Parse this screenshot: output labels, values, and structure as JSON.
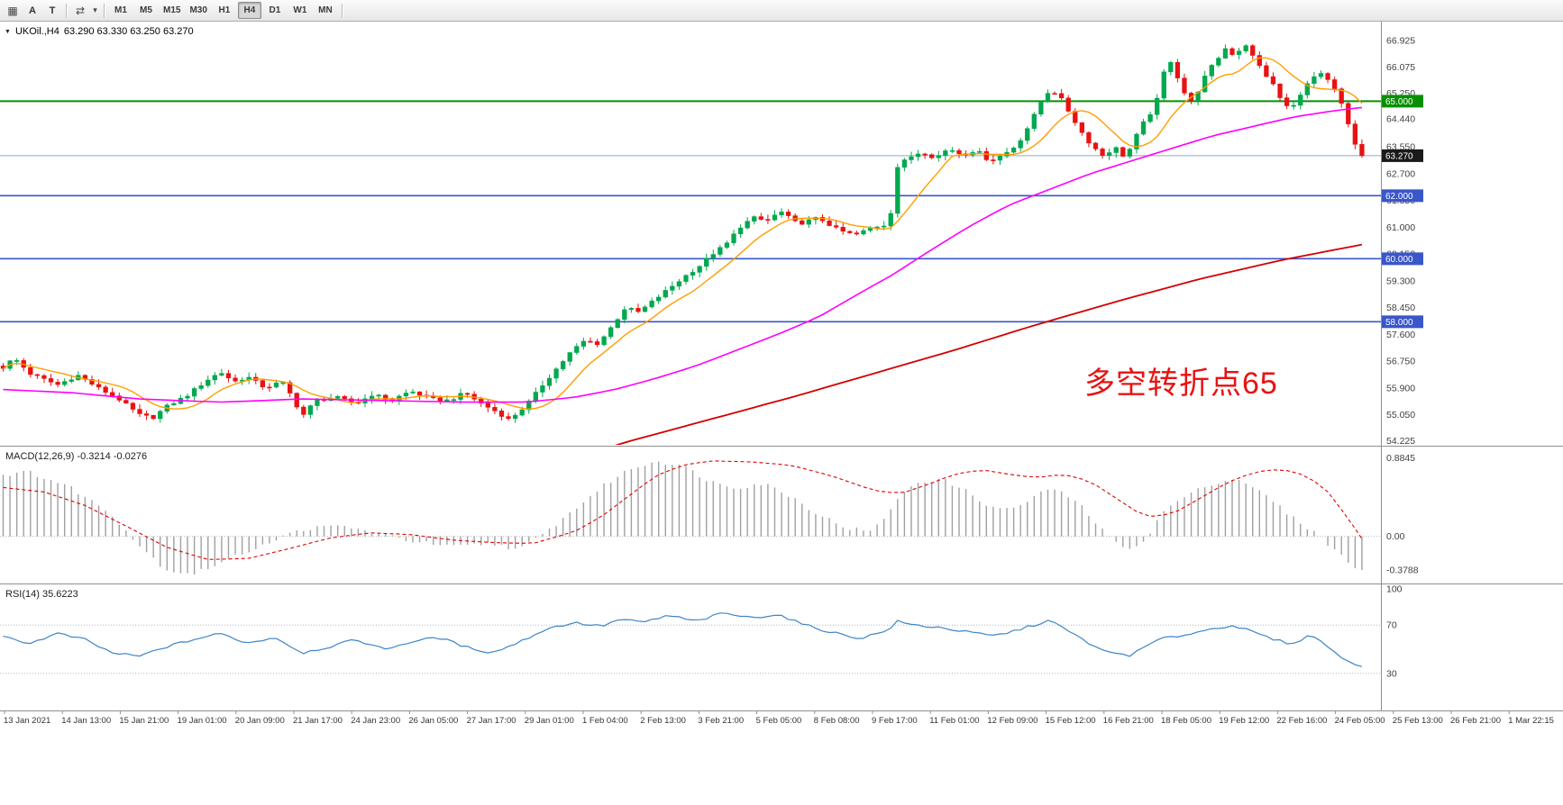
{
  "toolbar": {
    "left_icons": [
      {
        "name": "grid-icon",
        "glyph": "▦"
      },
      {
        "name": "label-a-icon",
        "glyph": "A"
      },
      {
        "name": "text-tool-icon",
        "glyph": "T"
      },
      {
        "name": "cycle-symbols-icon",
        "glyph": "⇄"
      },
      {
        "name": "dropdown-caret-icon",
        "glyph": "▾"
      }
    ],
    "timeframes": [
      "M1",
      "M5",
      "M15",
      "M30",
      "H1",
      "H4",
      "D1",
      "W1",
      "MN"
    ],
    "active_timeframe": "H4"
  },
  "chart": {
    "collapse_glyph": "▼",
    "symbol_period": "UKOil.,H4",
    "ohlc_text": "63.290 63.330 63.250 63.270",
    "annotation": "多空转折点65",
    "annotation_color": "#e81212"
  },
  "macd": {
    "label": "MACD(12,26,9) -0.3214 -0.0276"
  },
  "rsi": {
    "label": "RSI(14) 35.6223"
  },
  "chart_data": {
    "type": "candlestick",
    "symbol": "UKOil.",
    "period": "H4",
    "last_ohlc": {
      "open": 63.29,
      "high": 63.33,
      "low": 63.25,
      "close": 63.27
    },
    "price_range": {
      "max": 67.525,
      "min": 54.095
    },
    "price_axis_labels": [
      "66.925",
      "66.075",
      "65.250",
      "64.440",
      "63.550",
      "62.700",
      "61.850",
      "61.000",
      "60.150",
      "59.300",
      "58.450",
      "57.600",
      "56.750",
      "55.900",
      "55.050",
      "54.225"
    ],
    "hlines": [
      {
        "price": 65.0,
        "color": "#089000",
        "width": 2,
        "tag": {
          "text": "65.000",
          "bg": "#089000"
        }
      },
      {
        "price": 63.27,
        "color": "#8fa8c8",
        "width": 1,
        "tag": {
          "text": "63.270",
          "bg": "#1a1a1a"
        }
      },
      {
        "price": 62.0,
        "color": "#3a56c8",
        "width": 1.6,
        "tag": {
          "text": "62.000",
          "bg": "#3a56c8"
        }
      },
      {
        "price": 60.0,
        "color": "#3a56c8",
        "width": 1.6,
        "tag": {
          "text": "60.000",
          "bg": "#3a56c8"
        }
      },
      {
        "price": 58.0,
        "color": "#3a56c8",
        "width": 1.6,
        "tag": {
          "text": "58.000",
          "bg": "#3a56c8"
        }
      }
    ],
    "candles": {
      "count": 200,
      "up_color": "#00a84f",
      "down_color": "#e81212",
      "noise": 0.1,
      "wick_noise": 0.14,
      "close_anchors": [
        [
          0.0,
          56.55
        ],
        [
          0.008,
          56.85
        ],
        [
          0.02,
          56.35
        ],
        [
          0.04,
          56.0
        ],
        [
          0.055,
          56.3
        ],
        [
          0.07,
          55.9
        ],
        [
          0.085,
          55.55
        ],
        [
          0.1,
          55.05
        ],
        [
          0.11,
          54.95
        ],
        [
          0.12,
          55.3
        ],
        [
          0.135,
          55.65
        ],
        [
          0.15,
          56.15
        ],
        [
          0.16,
          56.4
        ],
        [
          0.17,
          56.1
        ],
        [
          0.18,
          56.25
        ],
        [
          0.193,
          55.9
        ],
        [
          0.205,
          56.1
        ],
        [
          0.213,
          55.6
        ],
        [
          0.22,
          55.0
        ],
        [
          0.23,
          55.5
        ],
        [
          0.245,
          55.6
        ],
        [
          0.26,
          55.4
        ],
        [
          0.272,
          55.7
        ],
        [
          0.285,
          55.5
        ],
        [
          0.3,
          55.8
        ],
        [
          0.315,
          55.55
        ],
        [
          0.328,
          55.5
        ],
        [
          0.34,
          55.75
        ],
        [
          0.352,
          55.4
        ],
        [
          0.363,
          55.15
        ],
        [
          0.372,
          54.9
        ],
        [
          0.38,
          55.15
        ],
        [
          0.388,
          55.5
        ],
        [
          0.398,
          56.05
        ],
        [
          0.408,
          56.55
        ],
        [
          0.418,
          57.05
        ],
        [
          0.428,
          57.4
        ],
        [
          0.438,
          57.3
        ],
        [
          0.448,
          57.85
        ],
        [
          0.458,
          58.45
        ],
        [
          0.468,
          58.3
        ],
        [
          0.478,
          58.65
        ],
        [
          0.49,
          59.05
        ],
        [
          0.502,
          59.45
        ],
        [
          0.512,
          59.75
        ],
        [
          0.522,
          60.15
        ],
        [
          0.532,
          60.45
        ],
        [
          0.542,
          61.0
        ],
        [
          0.552,
          61.3
        ],
        [
          0.562,
          61.2
        ],
        [
          0.572,
          61.5
        ],
        [
          0.585,
          61.1
        ],
        [
          0.6,
          61.3
        ],
        [
          0.615,
          60.9
        ],
        [
          0.627,
          60.75
        ],
        [
          0.64,
          61.0
        ],
        [
          0.652,
          61.1
        ],
        [
          0.658,
          62.9
        ],
        [
          0.666,
          63.2
        ],
        [
          0.676,
          63.4
        ],
        [
          0.686,
          63.2
        ],
        [
          0.696,
          63.5
        ],
        [
          0.706,
          63.3
        ],
        [
          0.716,
          63.45
        ],
        [
          0.726,
          63.1
        ],
        [
          0.736,
          63.3
        ],
        [
          0.746,
          63.6
        ],
        [
          0.756,
          64.3
        ],
        [
          0.764,
          65.0
        ],
        [
          0.771,
          65.4
        ],
        [
          0.779,
          65.05
        ],
        [
          0.786,
          64.55
        ],
        [
          0.794,
          64.0
        ],
        [
          0.801,
          63.6
        ],
        [
          0.81,
          63.25
        ],
        [
          0.818,
          63.55
        ],
        [
          0.826,
          63.2
        ],
        [
          0.834,
          63.9
        ],
        [
          0.841,
          64.45
        ],
        [
          0.848,
          64.8
        ],
        [
          0.853,
          65.8
        ],
        [
          0.859,
          66.3
        ],
        [
          0.866,
          65.6
        ],
        [
          0.873,
          64.9
        ],
        [
          0.879,
          65.3
        ],
        [
          0.886,
          65.9
        ],
        [
          0.893,
          66.3
        ],
        [
          0.9,
          66.7
        ],
        [
          0.907,
          66.4
        ],
        [
          0.913,
          66.9
        ],
        [
          0.92,
          66.4
        ],
        [
          0.928,
          65.9
        ],
        [
          0.935,
          65.5
        ],
        [
          0.941,
          65.0
        ],
        [
          0.948,
          64.7
        ],
        [
          0.954,
          65.2
        ],
        [
          0.961,
          65.6
        ],
        [
          0.968,
          65.9
        ],
        [
          0.974,
          65.7
        ],
        [
          0.981,
          65.3
        ],
        [
          0.986,
          64.8
        ],
        [
          0.991,
          64.1
        ],
        [
          0.996,
          63.5
        ],
        [
          1.0,
          63.27
        ]
      ]
    },
    "ma_fast": {
      "color": "#ff9d00",
      "period": 9
    },
    "ma_mid": {
      "color": "#ff00ff",
      "anchors": [
        [
          0,
          55.85
        ],
        [
          0.05,
          55.75
        ],
        [
          0.1,
          55.55
        ],
        [
          0.16,
          55.45
        ],
        [
          0.22,
          55.55
        ],
        [
          0.28,
          55.5
        ],
        [
          0.34,
          55.45
        ],
        [
          0.385,
          55.45
        ],
        [
          0.42,
          55.6
        ],
        [
          0.45,
          55.85
        ],
        [
          0.48,
          56.2
        ],
        [
          0.51,
          56.6
        ],
        [
          0.54,
          57.1
        ],
        [
          0.57,
          57.6
        ],
        [
          0.6,
          58.15
        ],
        [
          0.63,
          58.9
        ],
        [
          0.655,
          59.5
        ],
        [
          0.68,
          60.2
        ],
        [
          0.71,
          61.0
        ],
        [
          0.74,
          61.7
        ],
        [
          0.77,
          62.2
        ],
        [
          0.8,
          62.7
        ],
        [
          0.83,
          63.1
        ],
        [
          0.86,
          63.5
        ],
        [
          0.89,
          63.9
        ],
        [
          0.92,
          64.2
        ],
        [
          0.95,
          64.5
        ],
        [
          0.98,
          64.7
        ],
        [
          1,
          64.8
        ]
      ]
    },
    "ma_slow": {
      "color": "#d40000",
      "anchors": [
        [
          0.4,
          53.4
        ],
        [
          0.46,
          54.2
        ],
        [
          0.52,
          54.9
        ],
        [
          0.58,
          55.6
        ],
        [
          0.64,
          56.35
        ],
        [
          0.7,
          57.1
        ],
        [
          0.76,
          57.9
        ],
        [
          0.82,
          58.65
        ],
        [
          0.88,
          59.35
        ],
        [
          0.94,
          59.95
        ],
        [
          1,
          60.45
        ]
      ]
    },
    "macd": {
      "range": {
        "max": 0.97,
        "min": -0.5
      },
      "bar_color": "#a0a0a0",
      "signal_color": "#e00000",
      "axis_labels": [
        "0.8845",
        "0.00",
        "-0.3788"
      ],
      "hist_anchors": [
        [
          0.0,
          0.7
        ],
        [
          0.02,
          0.72
        ],
        [
          0.05,
          0.55
        ],
        [
          0.08,
          0.25
        ],
        [
          0.1,
          -0.1
        ],
        [
          0.12,
          -0.38
        ],
        [
          0.14,
          -0.42
        ],
        [
          0.16,
          -0.3
        ],
        [
          0.19,
          -0.1
        ],
        [
          0.22,
          0.08
        ],
        [
          0.25,
          0.12
        ],
        [
          0.27,
          0.05
        ],
        [
          0.3,
          -0.05
        ],
        [
          0.33,
          -0.12
        ],
        [
          0.36,
          -0.08
        ],
        [
          0.38,
          -0.15
        ],
        [
          0.4,
          0.05
        ],
        [
          0.42,
          0.3
        ],
        [
          0.44,
          0.55
        ],
        [
          0.46,
          0.75
        ],
        [
          0.48,
          0.85
        ],
        [
          0.5,
          0.8
        ],
        [
          0.52,
          0.62
        ],
        [
          0.54,
          0.55
        ],
        [
          0.56,
          0.6
        ],
        [
          0.58,
          0.45
        ],
        [
          0.6,
          0.25
        ],
        [
          0.62,
          0.1
        ],
        [
          0.64,
          0.05
        ],
        [
          0.655,
          0.35
        ],
        [
          0.67,
          0.6
        ],
        [
          0.69,
          0.65
        ],
        [
          0.71,
          0.5
        ],
        [
          0.73,
          0.3
        ],
        [
          0.75,
          0.35
        ],
        [
          0.77,
          0.55
        ],
        [
          0.79,
          0.4
        ],
        [
          0.81,
          0.05
        ],
        [
          0.825,
          -0.15
        ],
        [
          0.84,
          -0.05
        ],
        [
          0.855,
          0.3
        ],
        [
          0.87,
          0.45
        ],
        [
          0.89,
          0.6
        ],
        [
          0.91,
          0.65
        ],
        [
          0.93,
          0.45
        ],
        [
          0.95,
          0.2
        ],
        [
          0.965,
          0.05
        ],
        [
          0.98,
          -0.15
        ],
        [
          0.99,
          -0.3
        ],
        [
          1.0,
          -0.3788
        ]
      ],
      "signal_anchors": [
        [
          0.0,
          0.55
        ],
        [
          0.03,
          0.5
        ],
        [
          0.06,
          0.35
        ],
        [
          0.09,
          0.12
        ],
        [
          0.12,
          -0.12
        ],
        [
          0.15,
          -0.26
        ],
        [
          0.18,
          -0.25
        ],
        [
          0.21,
          -0.14
        ],
        [
          0.24,
          -0.02
        ],
        [
          0.27,
          0.04
        ],
        [
          0.3,
          0.02
        ],
        [
          0.33,
          -0.04
        ],
        [
          0.36,
          -0.07
        ],
        [
          0.39,
          -0.08
        ],
        [
          0.42,
          0.05
        ],
        [
          0.44,
          0.22
        ],
        [
          0.46,
          0.45
        ],
        [
          0.48,
          0.68
        ],
        [
          0.5,
          0.8
        ],
        [
          0.52,
          0.85
        ],
        [
          0.55,
          0.84
        ],
        [
          0.58,
          0.8
        ],
        [
          0.61,
          0.68
        ],
        [
          0.64,
          0.52
        ],
        [
          0.66,
          0.48
        ],
        [
          0.68,
          0.58
        ],
        [
          0.7,
          0.7
        ],
        [
          0.72,
          0.75
        ],
        [
          0.74,
          0.7
        ],
        [
          0.76,
          0.66
        ],
        [
          0.78,
          0.7
        ],
        [
          0.8,
          0.62
        ],
        [
          0.82,
          0.42
        ],
        [
          0.84,
          0.22
        ],
        [
          0.86,
          0.25
        ],
        [
          0.88,
          0.42
        ],
        [
          0.9,
          0.6
        ],
        [
          0.92,
          0.72
        ],
        [
          0.94,
          0.76
        ],
        [
          0.96,
          0.68
        ],
        [
          0.975,
          0.5
        ],
        [
          0.99,
          0.2
        ],
        [
          1.0,
          -0.0276
        ]
      ]
    },
    "rsi": {
      "range": {
        "max": 100,
        "min": 0
      },
      "line_color": "#3d85c8",
      "levels": [
        70,
        30
      ],
      "axis_labels": [
        "100",
        "70",
        "30"
      ],
      "last_value": 35.6223,
      "anchors": [
        [
          0.0,
          60
        ],
        [
          0.02,
          55
        ],
        [
          0.04,
          63
        ],
        [
          0.06,
          58
        ],
        [
          0.08,
          47
        ],
        [
          0.1,
          44
        ],
        [
          0.12,
          52
        ],
        [
          0.14,
          58
        ],
        [
          0.16,
          63
        ],
        [
          0.18,
          55
        ],
        [
          0.2,
          60
        ],
        [
          0.22,
          47
        ],
        [
          0.24,
          52
        ],
        [
          0.26,
          58
        ],
        [
          0.28,
          50
        ],
        [
          0.3,
          56
        ],
        [
          0.32,
          60
        ],
        [
          0.34,
          52
        ],
        [
          0.36,
          47
        ],
        [
          0.38,
          56
        ],
        [
          0.4,
          67
        ],
        [
          0.42,
          72
        ],
        [
          0.44,
          69
        ],
        [
          0.455,
          75
        ],
        [
          0.47,
          72
        ],
        [
          0.49,
          78
        ],
        [
          0.51,
          73
        ],
        [
          0.53,
          80
        ],
        [
          0.55,
          76
        ],
        [
          0.57,
          79
        ],
        [
          0.59,
          70
        ],
        [
          0.61,
          64
        ],
        [
          0.63,
          59
        ],
        [
          0.65,
          65
        ],
        [
          0.658,
          73
        ],
        [
          0.67,
          70
        ],
        [
          0.69,
          68
        ],
        [
          0.71,
          64
        ],
        [
          0.73,
          61
        ],
        [
          0.75,
          67
        ],
        [
          0.77,
          74
        ],
        [
          0.79,
          61
        ],
        [
          0.81,
          48
        ],
        [
          0.83,
          45
        ],
        [
          0.85,
          58
        ],
        [
          0.87,
          62
        ],
        [
          0.89,
          67
        ],
        [
          0.905,
          70
        ],
        [
          0.92,
          64
        ],
        [
          0.935,
          58
        ],
        [
          0.95,
          54
        ],
        [
          0.96,
          62
        ],
        [
          0.97,
          57
        ],
        [
          0.98,
          47
        ],
        [
          0.99,
          40
        ],
        [
          1.0,
          35.6
        ]
      ]
    },
    "time_axis_labels": [
      "13 Jan 2021",
      "14 Jan 13:00",
      "15 Jan 21:00",
      "19 Jan 01:00",
      "20 Jan 09:00",
      "21 Jan 17:00",
      "24 Jan 23:00",
      "26 Jan 05:00",
      "27 Jan 17:00",
      "29 Jan 01:00",
      "1 Feb 04:00",
      "2 Feb 13:00",
      "3 Feb 21:00",
      "5 Feb 05:00",
      "8 Feb 08:00",
      "9 Feb 17:00",
      "11 Feb 01:00",
      "12 Feb 09:00",
      "15 Feb 12:00",
      "16 Feb 21:00",
      "18 Feb 05:00",
      "19 Feb 12:00",
      "22 Feb 16:00",
      "24 Feb 05:00",
      "25 Feb 13:00",
      "26 Feb 21:00",
      "1 Mar 22:15"
    ]
  }
}
